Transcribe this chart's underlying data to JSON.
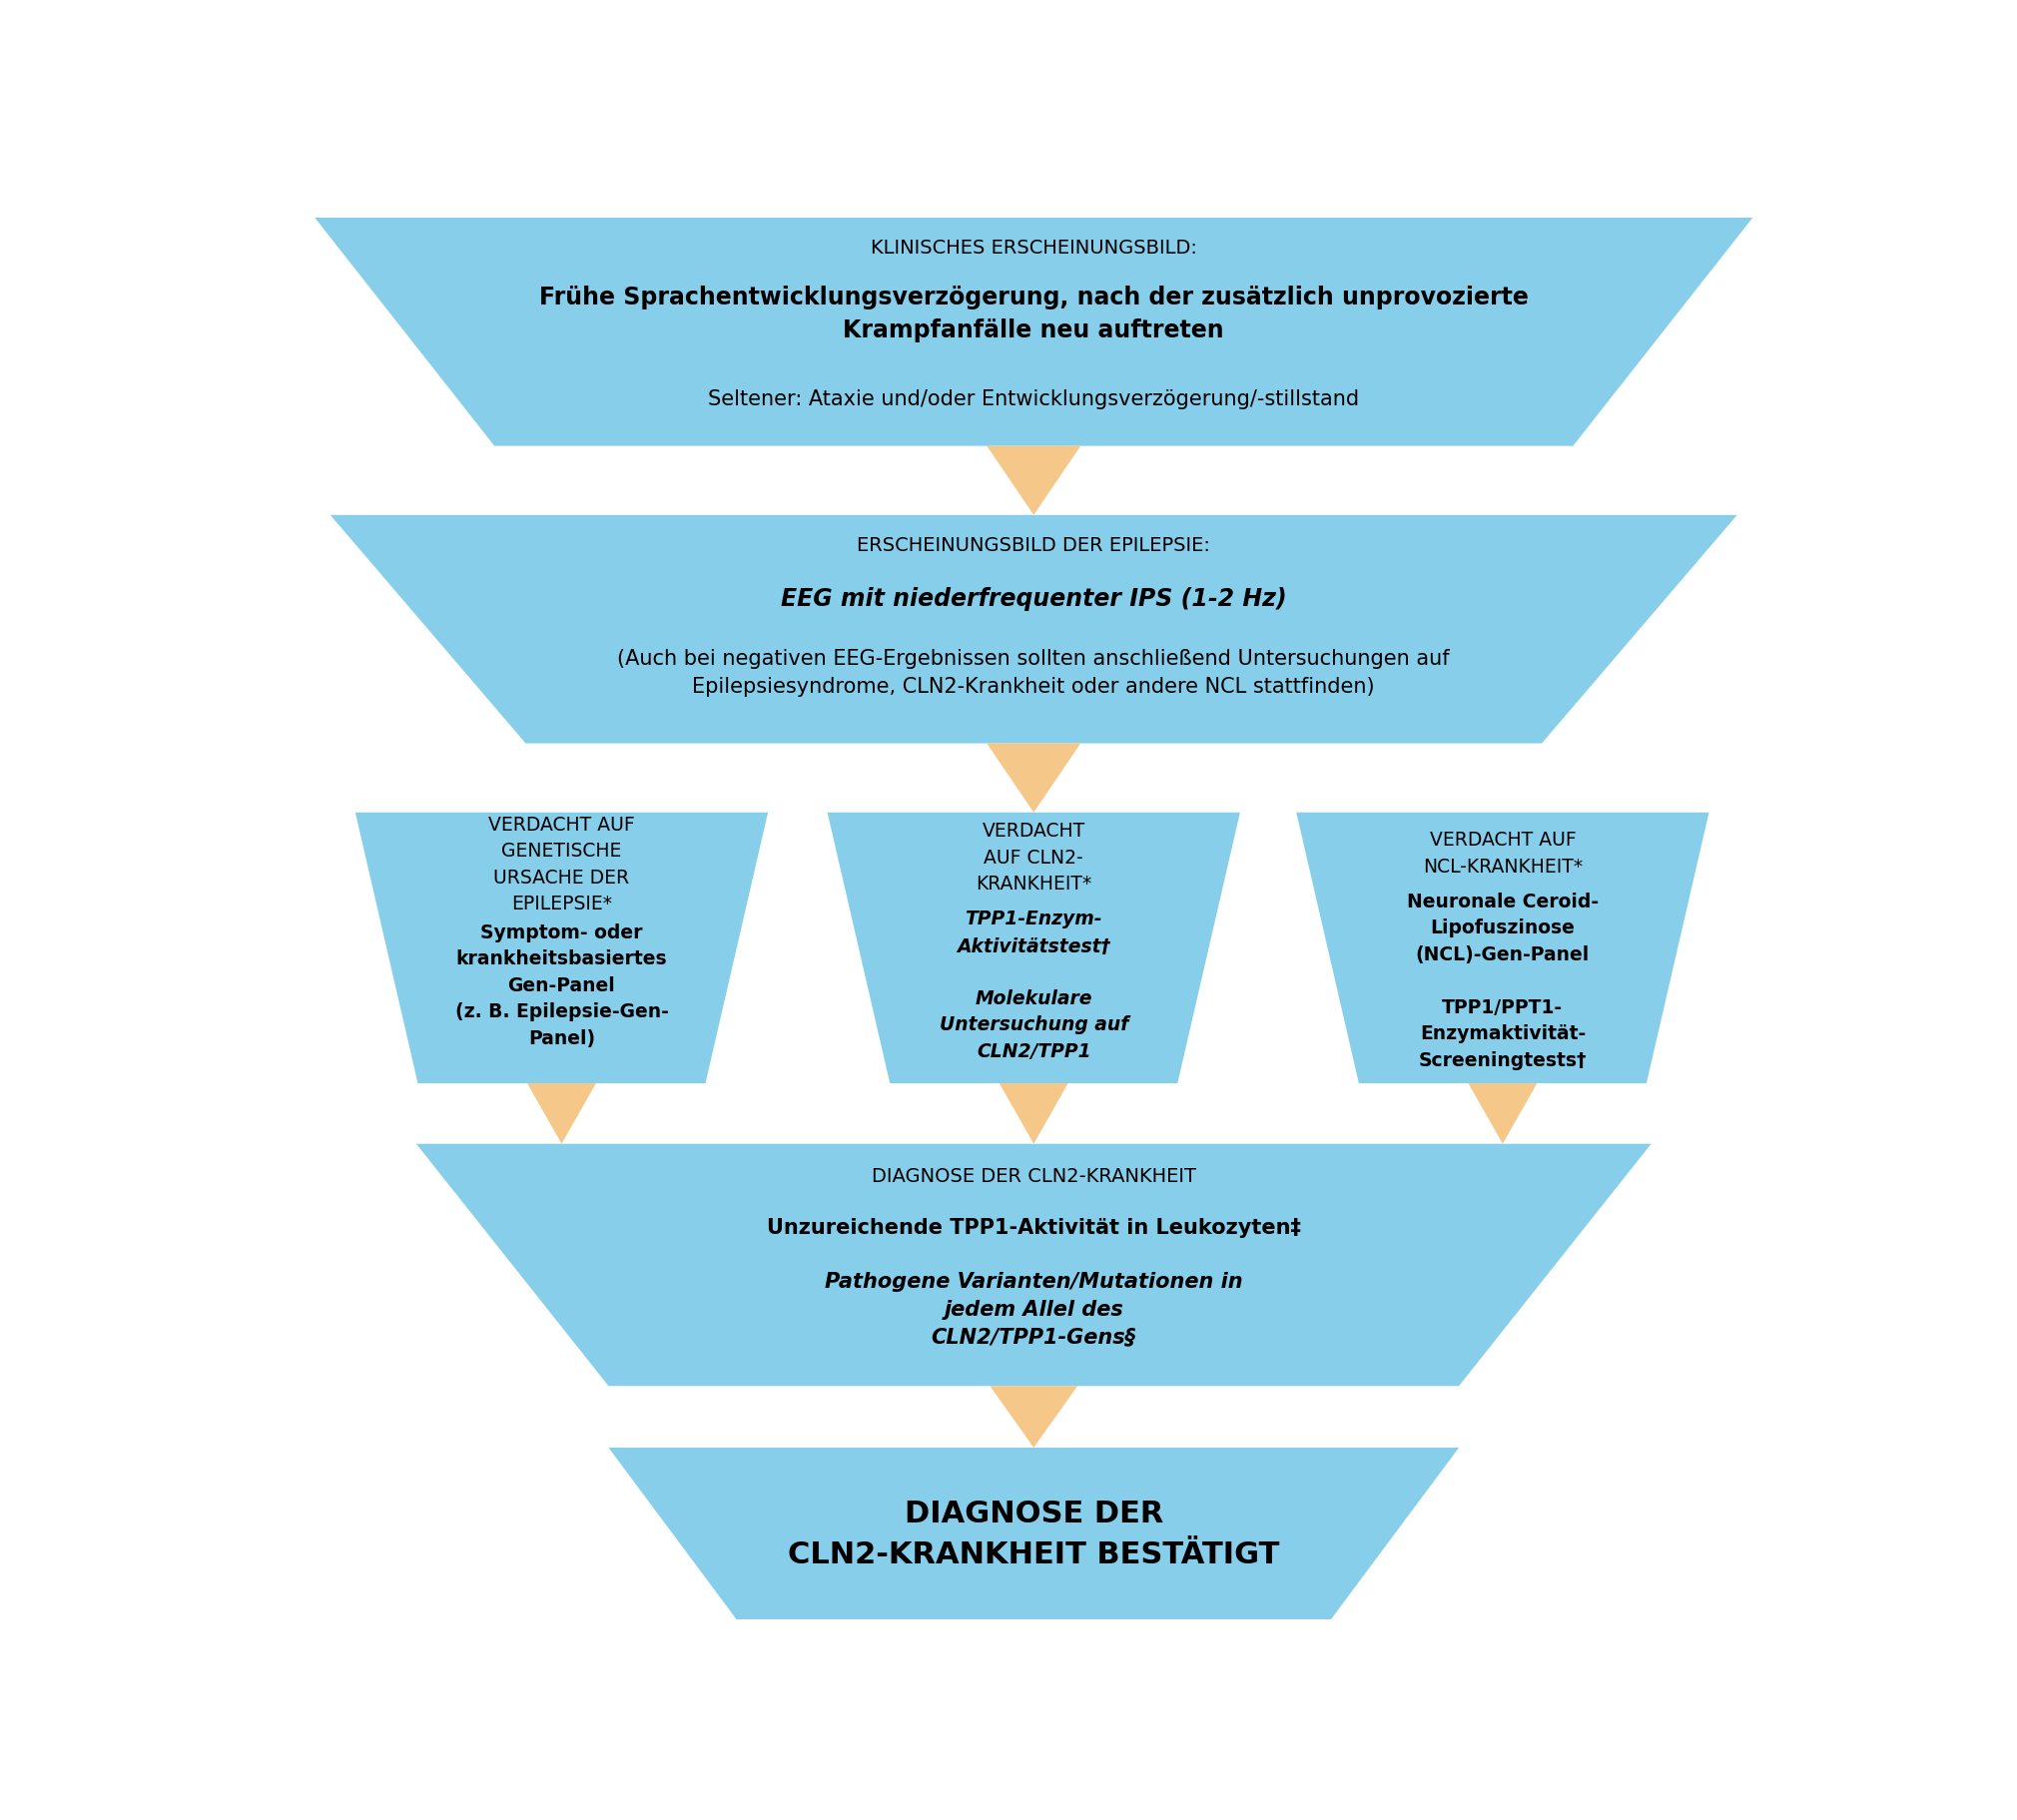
{
  "bg_color": "#ffffff",
  "shape_color": "#87CEEB",
  "arrow_color": "#F5C88A",
  "text_color": "#000000",
  "box1": {
    "label_small": "KLINISCHES ERSCHEINUNGSBILD:",
    "label_bold": "Frühe Sprachentwicklungsverzögerung, nach der zusätzlich unprovozierte\nKrampfanfälle neu auftreten",
    "label_normal": "Seltener: Ataxie und/oder Entwicklungsverzögerung/-stillstand"
  },
  "box2": {
    "label_small": "ERSCHEINUNGSBILD DER EPILEPSIE:",
    "label_bold": "EEG mit niederfrequenter IPS (1-2 Hz)",
    "label_normal": "(Auch bei negativen EEG-Ergebnissen sollten anschließend Untersuchungen auf\nEpilepsiesyndrome, CLN2-Krankheit oder andere NCL stattfinden)"
  },
  "box3a": {
    "label_small": "VERDACHT AUF\nGENETISCHE\nURSACHE DER\nEPILEPSIE*",
    "label_bold": "Symptom- oder\nkrankheitsbasiertes\nGen-Panel\n(z. B. Epilepsie-Gen-\nPanel)"
  },
  "box3b": {
    "label_small": "VERDACHT\nAUF CLN2-\nKRANKHEIT*",
    "label_bold": "TPP1-Enzym-\nAktivitätstest†\n\nMolekulare\nUntersuchung auf\nCLN2/TPP1"
  },
  "box3c": {
    "label_small": "VERDACHT AUF\nNCL-KRANKHEIT*",
    "label_bold": "Neuronale Ceroid-\nLipofuszinose\n(NCL)-Gen-Panel\n\nTPP1/PPT1-\nEnzymaktivität-\nScreeningtests†"
  },
  "box4": {
    "label_small": "DIAGNOSE DER CLN2-KRANKHEIT",
    "label_bold_normal": "Unzureichende TPP1-Aktivität in Leukozyten‡",
    "label_bold_italic": "Pathogene Varianten/Mutationen in\njedem Allel des\nCLN2/TPP1-Gens§"
  },
  "box5": {
    "label_bold": "DIAGNOSE DER\nCLN2-KRANKHEIT BESTÄTIGT"
  }
}
